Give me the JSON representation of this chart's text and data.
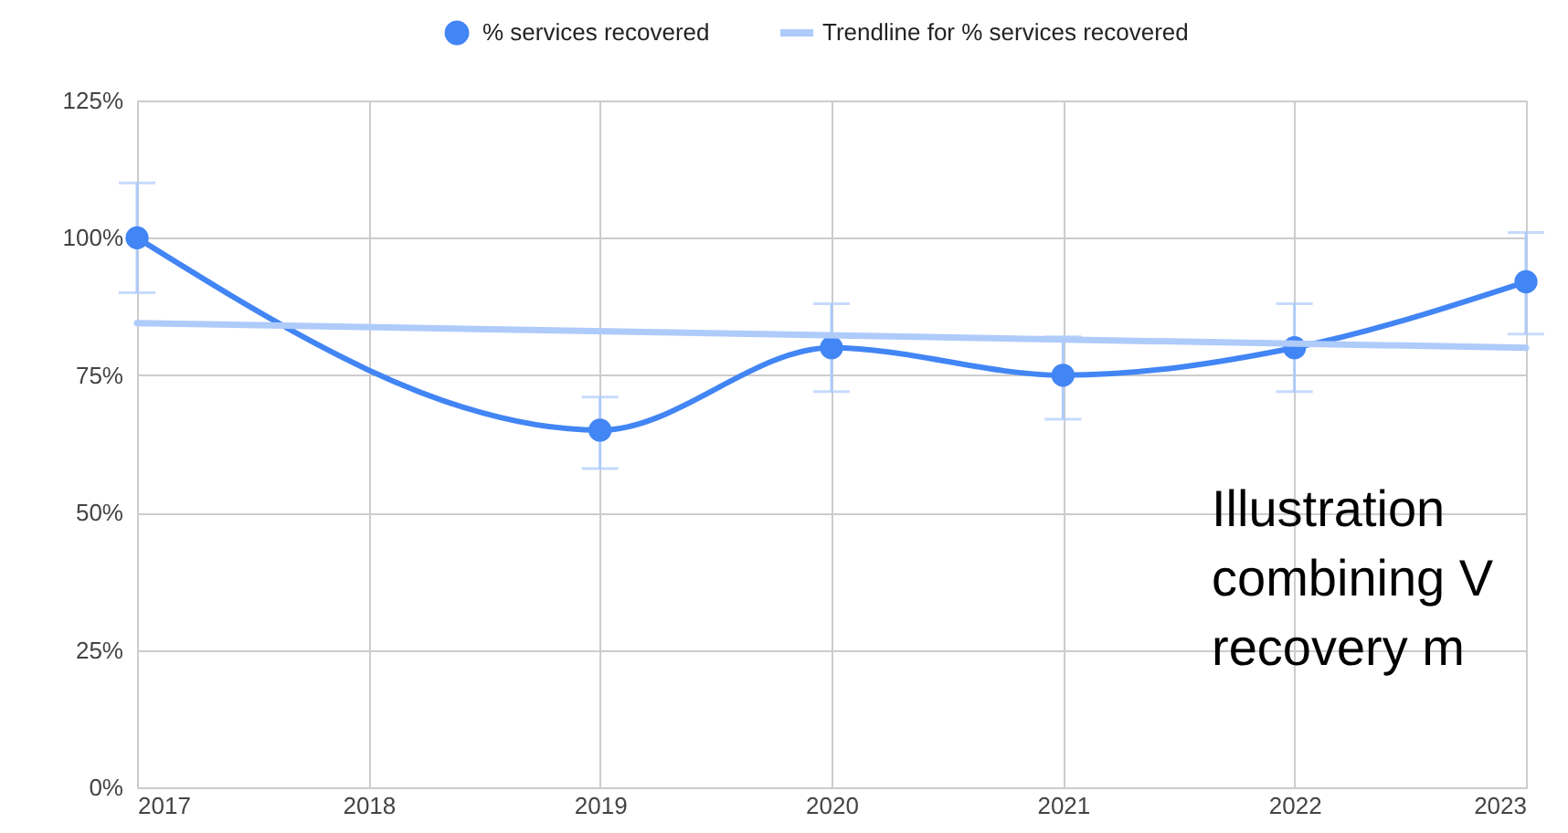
{
  "chart_data": {
    "type": "line",
    "series": [
      {
        "name": "% services recovered",
        "color": "#4285f4",
        "marker": "circle",
        "x": [
          2017,
          2019,
          2020,
          2021,
          2022,
          2023
        ],
        "values": [
          100,
          65,
          80,
          75,
          80,
          92
        ],
        "errors": [
          [
            90,
            110
          ],
          [
            58,
            71
          ],
          [
            72,
            88
          ],
          [
            67,
            82
          ],
          [
            72,
            88
          ],
          [
            82.5,
            101
          ]
        ]
      },
      {
        "name": "Trendline for % services recovered",
        "color": "#aecbfa",
        "marker": "none",
        "x": [
          2017,
          2023
        ],
        "values": [
          84.5,
          80
        ]
      }
    ],
    "xlim": [
      2017,
      2023
    ],
    "xticks": [
      2017,
      2018,
      2019,
      2020,
      2021,
      2022,
      2023
    ],
    "ylim": [
      0,
      125
    ],
    "yticks": [
      {
        "value": 0,
        "label": "0%"
      },
      {
        "value": 25,
        "label": "25%"
      },
      {
        "value": 50,
        "label": "50%"
      },
      {
        "value": 75,
        "label": "75%"
      },
      {
        "value": 100,
        "label": "100%"
      },
      {
        "value": 125,
        "label": "125%"
      }
    ],
    "grid": true,
    "legend": "top",
    "annotations": [
      "Illustration",
      "combining V",
      "recovery m"
    ]
  }
}
